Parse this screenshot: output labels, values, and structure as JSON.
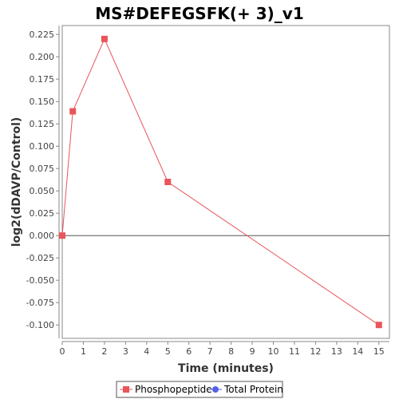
{
  "chart_data": {
    "type": "line",
    "title": "MS#DEFEGSFK(+ 3)_v1",
    "xlabel": "Time (minutes)",
    "ylabel": "log2(dDAVP/Control)",
    "xlim": [
      0,
      15.5
    ],
    "ylim": [
      -0.115,
      0.235
    ],
    "xticks": [
      0,
      1,
      2,
      3,
      4,
      5,
      6,
      7,
      8,
      9,
      10,
      11,
      12,
      13,
      14,
      15
    ],
    "yticks": [
      -0.1,
      -0.075,
      -0.05,
      -0.025,
      0.0,
      0.025,
      0.05,
      0.075,
      0.1,
      0.125,
      0.15,
      0.175,
      0.2,
      0.225
    ],
    "ytick_labels": [
      "-0.100",
      "-0.075",
      "-0.050",
      "-0.025",
      "0.000",
      "0.025",
      "0.050",
      "0.075",
      "0.100",
      "0.125",
      "0.150",
      "0.175",
      "0.200",
      "0.225"
    ],
    "zero_line": true,
    "grid": false,
    "legend_position": "bottom",
    "series": [
      {
        "name": "Phosphopeptide",
        "color": "#e8555a",
        "marker": "square",
        "x": [
          0,
          0.5,
          2,
          5,
          15
        ],
        "y": [
          0.0,
          0.139,
          0.22,
          0.06,
          -0.1
        ]
      },
      {
        "name": "Total Protein",
        "color": "#5560e8",
        "marker": "circle",
        "x": [],
        "y": []
      }
    ]
  }
}
